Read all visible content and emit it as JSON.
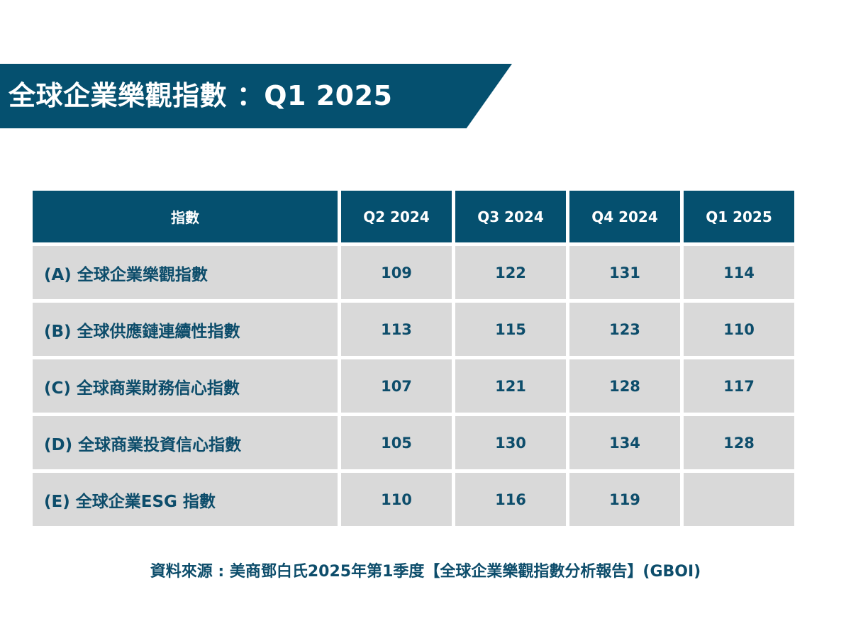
{
  "banner": {
    "title": "全球企業樂觀指數 ：Q1 2025",
    "color": "#05506f"
  },
  "table": {
    "headers": [
      "指數",
      "Q2 2024",
      "Q3 2024",
      "Q4 2024",
      "Q1 2025"
    ],
    "rows": [
      {
        "label": "(A) 全球企業樂觀指數",
        "values": [
          "109",
          "122",
          "131",
          "114"
        ]
      },
      {
        "label": "(B) 全球供應鏈連續性指數",
        "values": [
          "113",
          "115",
          "123",
          "110"
        ]
      },
      {
        "label": "(C) 全球商業財務信心指數",
        "values": [
          "107",
          "121",
          "128",
          "117"
        ]
      },
      {
        "label": "(D) 全球商業投資信心指數",
        "values": [
          "105",
          "130",
          "134",
          "128"
        ]
      },
      {
        "label": "(E) 全球企業ESG 指數",
        "values": [
          "110",
          "116",
          "119",
          ""
        ]
      }
    ]
  },
  "footer": {
    "source": "資料來源 : 美商鄧白氏2025年第1季度【全球企業樂觀指數分析報告】(GBOI)"
  }
}
